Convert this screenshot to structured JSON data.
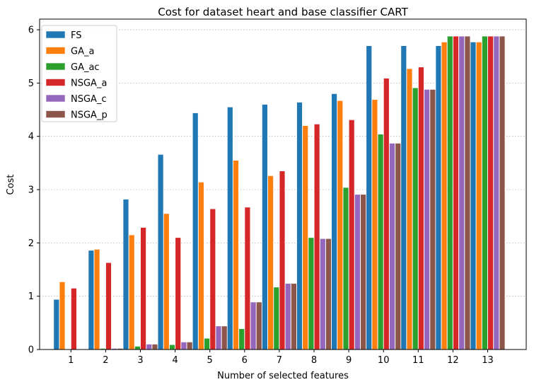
{
  "chart_data": {
    "type": "bar",
    "title": "Cost for dataset heart and base classifier CART",
    "xlabel": "Number of selected features",
    "ylabel": "Cost",
    "categories": [
      "1",
      "2",
      "3",
      "4",
      "5",
      "6",
      "7",
      "8",
      "9",
      "10",
      "11",
      "12",
      "13"
    ],
    "ylim": [
      0,
      6.2
    ],
    "yticks": [
      "0",
      "1",
      "2",
      "3",
      "4",
      "5",
      "6"
    ],
    "grid": "horizontal dotted",
    "legend_position": "top-left",
    "series": [
      {
        "name": "FS",
        "color": "#1f77b4",
        "values": [
          0.94,
          1.86,
          2.82,
          3.66,
          4.44,
          4.55,
          4.6,
          4.64,
          4.8,
          5.7,
          5.7,
          5.7,
          5.77
        ]
      },
      {
        "name": "GA_a",
        "color": "#ff7f0e",
        "values": [
          1.27,
          1.88,
          2.15,
          2.55,
          3.14,
          3.55,
          3.26,
          4.2,
          4.67,
          4.69,
          5.27,
          5.77,
          5.77
        ]
      },
      {
        "name": "GA_ac",
        "color": "#2ca02c",
        "values": [
          0.01,
          0.02,
          0.06,
          0.09,
          0.21,
          0.39,
          1.17,
          2.1,
          3.04,
          4.04,
          4.91,
          5.88,
          5.88
        ]
      },
      {
        "name": "NSGA_a",
        "color": "#d62728",
        "values": [
          1.15,
          1.63,
          2.29,
          2.1,
          2.64,
          2.67,
          3.35,
          4.23,
          4.31,
          5.09,
          5.3,
          5.88,
          5.88
        ]
      },
      {
        "name": "NSGA_c",
        "color": "#9467bd",
        "values": [
          0.01,
          0.02,
          0.1,
          0.14,
          0.44,
          0.89,
          1.24,
          2.08,
          2.91,
          3.87,
          4.88,
          5.88,
          5.88
        ]
      },
      {
        "name": "NSGA_p",
        "color": "#8c564b",
        "values": [
          0.01,
          0.02,
          0.1,
          0.14,
          0.44,
          0.89,
          1.24,
          2.08,
          2.91,
          3.87,
          4.88,
          5.88,
          5.88
        ]
      }
    ]
  }
}
